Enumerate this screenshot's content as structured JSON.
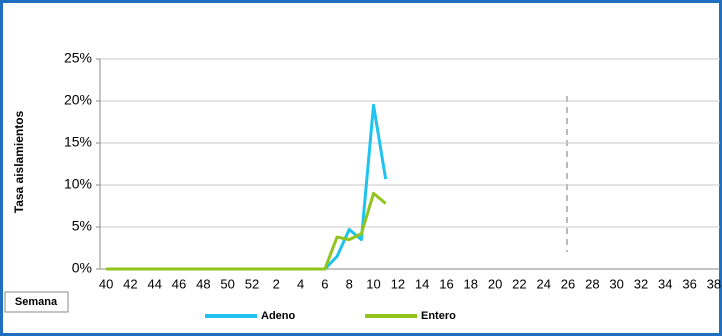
{
  "chart_data": {
    "type": "line",
    "y_label": "Tasa aislamientos",
    "x_label": "Semana",
    "categories": [
      40,
      null,
      42,
      null,
      44,
      null,
      46,
      null,
      48,
      null,
      50,
      null,
      52,
      null,
      2,
      null,
      4,
      null,
      6,
      null,
      8,
      null,
      10,
      null,
      12,
      null,
      14,
      null,
      16,
      null,
      18,
      null,
      20,
      null,
      22,
      null,
      24,
      null,
      26,
      null,
      28,
      null,
      30,
      null,
      32,
      null,
      34,
      null,
      36,
      null,
      38
    ],
    "series": [
      {
        "name": "Adeno",
        "color": "#1ec3f0",
        "values": [
          0,
          0,
          0,
          0,
          0,
          0,
          0,
          0,
          0,
          0,
          0,
          0,
          0,
          0,
          0,
          0,
          0,
          0,
          0,
          1.5,
          4.7,
          3.5,
          19.5,
          10.7,
          null,
          null,
          null,
          null,
          null,
          null,
          null,
          null,
          null,
          null,
          null,
          null,
          null,
          null,
          null,
          null,
          null,
          null,
          null,
          null,
          null,
          null,
          null,
          null,
          null,
          null,
          null
        ]
      },
      {
        "name": "Entero",
        "color": "#92c41e",
        "values": [
          0,
          0,
          0,
          0,
          0,
          0,
          0,
          0,
          0,
          0,
          0,
          0,
          0,
          0,
          0,
          0,
          0,
          0,
          0,
          3.8,
          3.5,
          4.2,
          9.0,
          7.8,
          null,
          null,
          null,
          null,
          null,
          null,
          null,
          null,
          null,
          null,
          null,
          null,
          null,
          null,
          null,
          null,
          null,
          null,
          null,
          null,
          null,
          null,
          null,
          null,
          null,
          null,
          null
        ]
      }
    ],
    "ylim": [
      0,
      25
    ],
    "yticks": [
      {
        "value": 0,
        "label": "0%"
      },
      {
        "value": 5,
        "label": "5%"
      },
      {
        "value": 10,
        "label": "10%"
      },
      {
        "value": 15,
        "label": "15%"
      },
      {
        "value": 20,
        "label": "20%"
      },
      {
        "value": 25,
        "label": "25%"
      }
    ],
    "grid": true
  }
}
